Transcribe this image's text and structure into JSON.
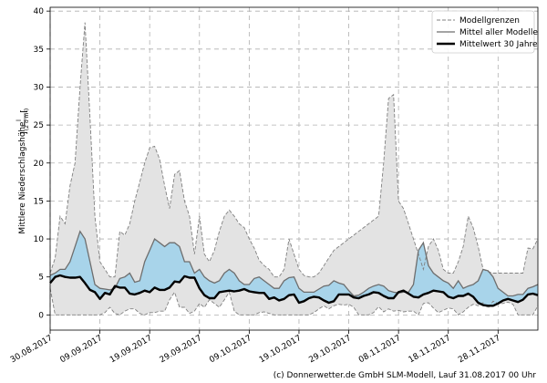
{
  "chart_data": {
    "type": "area",
    "ylabel": "Mittlere Niederschlagshöhe",
    "ylabel_unit_num": "l",
    "ylabel_unit_den": "(2 d·m²)",
    "ylim": [
      -2,
      40.5
    ],
    "yticks": [
      0,
      5,
      10,
      15,
      20,
      25,
      30,
      35,
      40
    ],
    "x_start": "2017-08-30",
    "x_end": "2017-12-06",
    "xticks": [
      "30.08.2017",
      "09.09.2017",
      "19.09.2017",
      "29.09.2017",
      "09.10.2017",
      "19.10.2017",
      "29.10.2017",
      "08.11.2017",
      "18.11.2017",
      "28.11.2017"
    ],
    "grid": true,
    "legend_position": "top-right",
    "legend": [
      {
        "name": "Modellgrenzen",
        "style": "dashed"
      },
      {
        "name": "Mittel aller Modelle",
        "style": "solid-gray"
      },
      {
        "name": "Mittelwert 30 Jahre",
        "style": "solid-black"
      }
    ],
    "x": [
      0,
      1,
      2,
      3,
      4,
      5,
      6,
      7,
      8,
      9,
      10,
      11,
      12,
      13,
      14,
      15,
      16,
      17,
      18,
      19,
      20,
      21,
      22,
      23,
      24,
      25,
      26,
      27,
      28,
      29,
      30,
      31,
      32,
      33,
      34,
      35,
      36,
      37,
      38,
      39,
      40,
      41,
      42,
      43,
      44,
      45,
      46,
      47,
      48,
      49,
      50,
      51,
      52,
      53,
      54,
      55,
      56,
      57,
      58,
      59,
      60,
      61,
      62,
      63,
      64,
      65,
      66,
      67,
      68,
      69,
      70,
      71,
      72,
      73,
      74,
      75,
      76,
      77,
      78,
      79,
      80,
      81,
      82,
      83,
      84,
      85,
      86,
      87,
      88,
      89,
      90,
      91,
      92,
      93,
      94,
      95,
      96,
      97,
      98
    ],
    "series": [
      {
        "name": "Modellgrenzen max",
        "values": [
          5.5,
          7.5,
          13,
          12,
          17,
          20,
          30,
          38.5,
          26,
          13,
          7,
          6,
          5,
          5,
          11,
          10.5,
          12,
          15,
          17.5,
          20,
          22,
          22.2,
          20.5,
          17,
          14,
          18.5,
          19,
          15,
          13,
          8,
          13,
          8,
          7,
          8.5,
          11,
          13,
          13.8,
          13,
          12,
          11.5,
          10,
          8.8,
          7.2,
          6.5,
          6,
          5,
          5,
          6,
          10,
          8,
          6,
          5.2,
          5,
          5,
          5.5,
          6.5,
          7.5,
          8.5,
          9,
          9.5,
          10,
          10.5,
          11,
          11.5,
          12,
          12.5,
          13,
          20,
          28.5,
          29,
          15,
          14,
          12,
          10,
          8,
          6,
          9,
          10,
          8.5,
          6,
          5.5,
          5.5,
          7,
          9,
          13,
          11.5,
          9,
          6,
          5.7,
          5.5,
          5.5,
          5.5,
          5.5,
          5.5,
          5.5,
          5.5,
          8.8,
          8.7,
          10
        ]
      },
      {
        "name": "Modellgrenzen min",
        "values": [
          3.5,
          0,
          0,
          0,
          0,
          0,
          0,
          0,
          0,
          0,
          0,
          0.3,
          1,
          0.2,
          0,
          0.5,
          0.8,
          0.8,
          0.2,
          0,
          0.3,
          0.3,
          0.5,
          0.5,
          2,
          3,
          1,
          1,
          0.2,
          0.5,
          1.5,
          1,
          2,
          1.5,
          1,
          2,
          3,
          0.5,
          0,
          0,
          0,
          0,
          0.3,
          0.4,
          0.2,
          0,
          0,
          0,
          0,
          0,
          0,
          0,
          0,
          0.3,
          0.8,
          1.2,
          0.8,
          1.2,
          1.4,
          1.3,
          1.4,
          1,
          0,
          0,
          0,
          0.3,
          1.1,
          0.4,
          0.8,
          0.5,
          0.6,
          0.4,
          0.5,
          0.5,
          0,
          1.5,
          1.6,
          0.9,
          0.3,
          0.6,
          0.9,
          0.8,
          0,
          0.4,
          1,
          1.4,
          1.2,
          1.6,
          0.9,
          1.8,
          1.5,
          1.5,
          1.7,
          1.4,
          0,
          0,
          0,
          0,
          1.2
        ]
      },
      {
        "name": "Mittel aller Modelle",
        "values": [
          5.2,
          5.5,
          6,
          6,
          7,
          9,
          11,
          10,
          7,
          4,
          3.5,
          3.4,
          3.3,
          3.5,
          4.8,
          5,
          5.5,
          4.3,
          4.5,
          7,
          8.5,
          10,
          9.5,
          9,
          9.5,
          9.5,
          9,
          7,
          7,
          5.5,
          6,
          5,
          4.5,
          4.2,
          4.5,
          5.5,
          6,
          5.5,
          4.5,
          4,
          4,
          4.8,
          5,
          4.5,
          4,
          3.5,
          3.5,
          4.5,
          4.9,
          5,
          3.5,
          3,
          3,
          3,
          3.4,
          3.8,
          3.9,
          4.5,
          4.2,
          4,
          3.2,
          2.5,
          2.6,
          3,
          3.5,
          3.8,
          4,
          3.8,
          3.2,
          3,
          2.9,
          3,
          3,
          4,
          8.5,
          9.5,
          6.5,
          5.5,
          5,
          4.5,
          4.2,
          3.5,
          4.5,
          3.5,
          3.8,
          4,
          4.5,
          6,
          5.8,
          5,
          3.5,
          3,
          2.5,
          2.5,
          2.7,
          2.7,
          3.5,
          3.7,
          4
        ]
      },
      {
        "name": "Mittelwert 30 Jahre",
        "values": [
          4.2,
          5,
          5.2,
          5,
          4.9,
          4.9,
          5,
          4.2,
          3.3,
          3,
          2.1,
          2.9,
          2.7,
          3.8,
          3.6,
          3.6,
          2.8,
          2.7,
          2.9,
          3.2,
          3,
          3.6,
          3.3,
          3.3,
          3.6,
          4.4,
          4.3,
          5.1,
          4.9,
          4.9,
          3.5,
          2.6,
          2.2,
          2.2,
          3,
          3.1,
          3.2,
          3.1,
          3.2,
          3.4,
          3.1,
          3,
          2.9,
          2.9,
          2.1,
          2.3,
          1.9,
          2.1,
          2.6,
          2.7,
          1.6,
          1.8,
          2.2,
          2.4,
          2.3,
          1.9,
          1.6,
          1.8,
          2.7,
          2.7,
          2.7,
          2.3,
          2.2,
          2.5,
          2.7,
          3,
          2.9,
          2.5,
          2.2,
          2.2,
          3,
          3.2,
          2.8,
          2.4,
          2.3,
          2.7,
          2.9,
          3.2,
          3.1,
          3,
          2.4,
          2.2,
          2.5,
          2.5,
          2.8,
          2.4,
          1.6,
          1.3,
          1.2,
          1.2,
          1.5,
          1.9,
          2.1,
          1.9,
          1.7,
          2,
          2.7,
          2.8,
          2.6
        ]
      }
    ]
  },
  "credit": "(c) Donnerwetter.de GmbH SLM-Modell, Lauf 31.08.2017 00 Uhr",
  "colors": {
    "envelope": "#e3e3e3",
    "envelope_border": "#808080",
    "mean_fill": "#a8d4ea",
    "model_mean": "#6e6e6e",
    "climate_mean": "#000000",
    "grid": "#b0b0b0"
  }
}
